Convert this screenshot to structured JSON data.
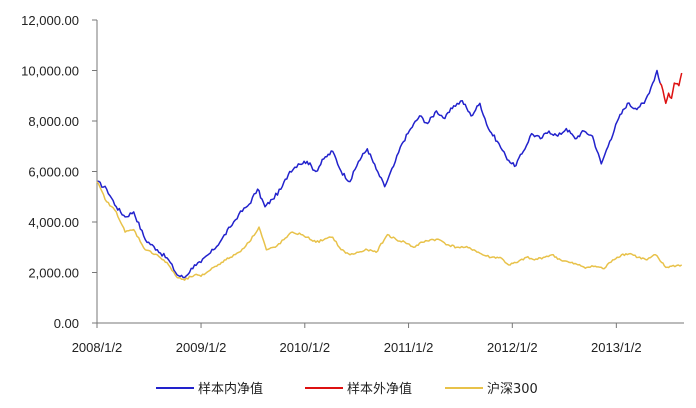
{
  "chart_data": {
    "type": "line",
    "title": "",
    "xlabel": "",
    "ylabel": "",
    "ylim": [
      0,
      12000
    ],
    "xlim": [
      "2008/1/2",
      "2013/8/28"
    ],
    "grid": false,
    "legend_position": "bottom",
    "y_ticks": [
      "0.00",
      "2,000.00",
      "4,000.00",
      "6,000.00",
      "8,000.00",
      "10,000.00",
      "12,000.00"
    ],
    "x_ticks": [
      "2008/1/2",
      "2009/1/2",
      "2010/1/2",
      "2011/1/2",
      "2012/1/2",
      "2013/1/2"
    ],
    "series": [
      {
        "name": "样本内净值",
        "color": "#2222cc",
        "points": [
          [
            "2008/1/2",
            5600
          ],
          [
            "2008/2/5",
            5300
          ],
          [
            "2008/3/10",
            4600
          ],
          [
            "2008/4/10",
            4200
          ],
          [
            "2008/5/10",
            4400
          ],
          [
            "2008/6/20",
            3300
          ],
          [
            "2008/8/1",
            2900
          ],
          [
            "2008/9/10",
            2500
          ],
          [
            "2008/10/10",
            1900
          ],
          [
            "2008/11/5",
            1800
          ],
          [
            "2008/12/10",
            2300
          ],
          [
            "2009/1/2",
            2400
          ],
          [
            "2009/2/15",
            2900
          ],
          [
            "2009/3/15",
            3300
          ],
          [
            "2009/4/15",
            3800
          ],
          [
            "2009/5/15",
            4300
          ],
          [
            "2009/6/20",
            4700
          ],
          [
            "2009/7/20",
            5300
          ],
          [
            "2009/8/15",
            4600
          ],
          [
            "2009/9/10",
            4900
          ],
          [
            "2009/10/10",
            5300
          ],
          [
            "2009/11/10",
            6000
          ],
          [
            "2009/12/10",
            6300
          ],
          [
            "2010/1/10",
            6400
          ],
          [
            "2010/2/10",
            6000
          ],
          [
            "2010/3/10",
            6500
          ],
          [
            "2010/4/10",
            6800
          ],
          [
            "2010/5/10",
            6000
          ],
          [
            "2010/6/10",
            5600
          ],
          [
            "2010/7/10",
            6400
          ],
          [
            "2010/8/10",
            6900
          ],
          [
            "2010/9/10",
            6100
          ],
          [
            "2010/10/10",
            5400
          ],
          [
            "2010/11/10",
            6200
          ],
          [
            "2010/12/10",
            7100
          ],
          [
            "2011/1/10",
            7700
          ],
          [
            "2011/2/10",
            8200
          ],
          [
            "2011/3/10",
            7900
          ],
          [
            "2011/4/10",
            8400
          ],
          [
            "2011/5/10",
            8100
          ],
          [
            "2011/6/10",
            8600
          ],
          [
            "2011/7/10",
            8800
          ],
          [
            "2011/8/10",
            8200
          ],
          [
            "2011/9/10",
            8700
          ],
          [
            "2011/10/10",
            7700
          ],
          [
            "2011/11/10",
            7200
          ],
          [
            "2011/12/10",
            6600
          ],
          [
            "2012/1/10",
            6200
          ],
          [
            "2012/2/10",
            6800
          ],
          [
            "2012/3/10",
            7500
          ],
          [
            "2012/4/10",
            7300
          ],
          [
            "2012/5/10",
            7600
          ],
          [
            "2012/6/10",
            7400
          ],
          [
            "2012/7/10",
            7700
          ],
          [
            "2012/8/10",
            7300
          ],
          [
            "2012/9/10",
            7600
          ],
          [
            "2012/10/10",
            7400
          ],
          [
            "2012/11/10",
            6300
          ],
          [
            "2012/12/10",
            7200
          ],
          [
            "2013/1/10",
            8100
          ],
          [
            "2013/2/10",
            8700
          ],
          [
            "2013/3/10",
            8500
          ],
          [
            "2013/4/10",
            8700
          ],
          [
            "2013/5/10",
            9500
          ],
          [
            "2013/5/25",
            10000
          ],
          [
            "2013/6/5",
            9500
          ]
        ]
      },
      {
        "name": "样本外净值",
        "color": "#dd1111",
        "points": [
          [
            "2013/6/5",
            9500
          ],
          [
            "2013/6/15",
            9200
          ],
          [
            "2013/6/25",
            8700
          ],
          [
            "2013/7/5",
            9100
          ],
          [
            "2013/7/15",
            8900
          ],
          [
            "2013/7/25",
            9500
          ],
          [
            "2013/8/10",
            9400
          ],
          [
            "2013/8/20",
            9900
          ]
        ]
      },
      {
        "name": "沪深300",
        "color": "#e8c24a",
        "points": [
          [
            "2008/1/2",
            5600
          ],
          [
            "2008/2/5",
            4800
          ],
          [
            "2008/3/10",
            4400
          ],
          [
            "2008/4/10",
            3600
          ],
          [
            "2008/5/10",
            3700
          ],
          [
            "2008/6/20",
            2900
          ],
          [
            "2008/8/1",
            2700
          ],
          [
            "2008/9/10",
            2300
          ],
          [
            "2008/10/10",
            1800
          ],
          [
            "2008/11/5",
            1700
          ],
          [
            "2008/12/10",
            1900
          ],
          [
            "2009/1/2",
            1850
          ],
          [
            "2009/2/15",
            2200
          ],
          [
            "2009/3/15",
            2400
          ],
          [
            "2009/4/15",
            2600
          ],
          [
            "2009/5/15",
            2800
          ],
          [
            "2009/6/20",
            3200
          ],
          [
            "2009/7/25",
            3800
          ],
          [
            "2009/8/20",
            2900
          ],
          [
            "2009/9/20",
            3000
          ],
          [
            "2009/10/20",
            3300
          ],
          [
            "2009/11/20",
            3600
          ],
          [
            "2009/12/20",
            3500
          ],
          [
            "2010/1/10",
            3400
          ],
          [
            "2010/2/10",
            3200
          ],
          [
            "2010/3/10",
            3300
          ],
          [
            "2010/4/10",
            3400
          ],
          [
            "2010/5/10",
            2900
          ],
          [
            "2010/6/10",
            2700
          ],
          [
            "2010/7/10",
            2800
          ],
          [
            "2010/8/10",
            2900
          ],
          [
            "2010/9/10",
            2800
          ],
          [
            "2010/10/20",
            3500
          ],
          [
            "2010/11/20",
            3300
          ],
          [
            "2010/12/20",
            3200
          ],
          [
            "2011/1/20",
            3000
          ],
          [
            "2011/2/20",
            3200
          ],
          [
            "2011/3/20",
            3300
          ],
          [
            "2011/4/20",
            3300
          ],
          [
            "2011/5/20",
            3100
          ],
          [
            "2011/6/20",
            3000
          ],
          [
            "2011/7/20",
            3000
          ],
          [
            "2011/8/20",
            2900
          ],
          [
            "2011/9/20",
            2700
          ],
          [
            "2011/10/20",
            2600
          ],
          [
            "2011/11/20",
            2600
          ],
          [
            "2011/12/20",
            2300
          ],
          [
            "2012/1/20",
            2400
          ],
          [
            "2012/2/20",
            2600
          ],
          [
            "2012/3/20",
            2500
          ],
          [
            "2012/4/20",
            2600
          ],
          [
            "2012/5/20",
            2700
          ],
          [
            "2012/6/20",
            2500
          ],
          [
            "2012/7/20",
            2400
          ],
          [
            "2012/8/20",
            2300
          ],
          [
            "2012/9/20",
            2200
          ],
          [
            "2012/10/20",
            2250
          ],
          [
            "2012/11/20",
            2150
          ],
          [
            "2012/12/20",
            2500
          ],
          [
            "2013/1/20",
            2700
          ],
          [
            "2013/2/20",
            2750
          ],
          [
            "2013/3/20",
            2600
          ],
          [
            "2013/4/20",
            2500
          ],
          [
            "2013/5/20",
            2700
          ],
          [
            "2013/6/10",
            2400
          ],
          [
            "2013/6/25",
            2200
          ],
          [
            "2013/7/15",
            2250
          ],
          [
            "2013/8/20",
            2300
          ]
        ]
      }
    ]
  }
}
